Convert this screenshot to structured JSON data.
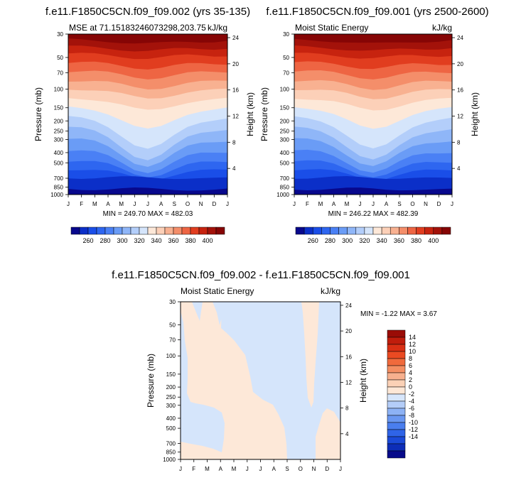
{
  "chart_data": [
    {
      "type": "contour",
      "title": "f.e11.F1850C5CN.f09_f09.002 (yrs 35-135)",
      "left_label": "MSE at 71.15183246073298,203.75",
      "right_label": "kJ/kg",
      "ylabel": "Pressure (mb)",
      "ylabel_right": "Height (km)",
      "months": [
        "J",
        "F",
        "M",
        "A",
        "M",
        "J",
        "J",
        "A",
        "S",
        "O",
        "N",
        "D",
        "J"
      ],
      "pressure_ticks": [
        "30",
        "50",
        "70",
        "100",
        "150",
        "200",
        "250",
        "300",
        "400",
        "500",
        "700",
        "850",
        "1000"
      ],
      "height_ticks": [
        "24",
        "20",
        "16",
        "12",
        "8",
        "4"
      ],
      "stats": "MIN = 249.70 MAX = 482.03"
    },
    {
      "type": "contour",
      "title": "f.e11.F1850C5CN.f09_f09.001 (yrs 2500-2600)",
      "left_label": "Moist Static Energy",
      "right_label": "kJ/kg",
      "ylabel": "Pressure (mb)",
      "ylabel_right": "Height (km)",
      "months": [
        "J",
        "F",
        "M",
        "A",
        "M",
        "J",
        "J",
        "A",
        "S",
        "O",
        "N",
        "D",
        "J"
      ],
      "pressure_ticks": [
        "30",
        "50",
        "70",
        "100",
        "150",
        "200",
        "250",
        "300",
        "400",
        "500",
        "700",
        "850",
        "1000"
      ],
      "height_ticks": [
        "24",
        "20",
        "16",
        "12",
        "8",
        "4"
      ],
      "stats": "MIN = 246.22 MAX = 482.39"
    },
    {
      "type": "contour",
      "title": "f.e11.F1850C5CN.f09_f09.002 - f.e11.F1850C5CN.f09_f09.001",
      "left_label": "Moist Static Energy",
      "right_label": "kJ/kg",
      "ylabel": "Pressure (mb)",
      "ylabel_right": "Height (km)",
      "months": [
        "J",
        "F",
        "M",
        "A",
        "M",
        "J",
        "J",
        "A",
        "S",
        "O",
        "N",
        "D",
        "J"
      ],
      "pressure_ticks": [
        "30",
        "50",
        "70",
        "100",
        "150",
        "200",
        "250",
        "300",
        "400",
        "500",
        "700",
        "850",
        "1000"
      ],
      "height_ticks": [
        "24",
        "20",
        "16",
        "12",
        "8",
        "4"
      ],
      "stats": "MIN =  -1.22 MAX =   3.67"
    }
  ],
  "colorbar_top": {
    "labels": [
      "260",
      "280",
      "300",
      "320",
      "340",
      "360",
      "380",
      "400"
    ],
    "colors": [
      "#08088c",
      "#0b2fc8",
      "#1a4ee8",
      "#2e66f0",
      "#4a80f5",
      "#6a9cf6",
      "#8fb6f8",
      "#b3cefa",
      "#d5e5fb",
      "#fde8d8",
      "#fcd0b8",
      "#f8b191",
      "#f48e6a",
      "#ee6543",
      "#e13d1f",
      "#c7230f",
      "#a3120a",
      "#860505"
    ]
  },
  "colorbar_bottom": {
    "labels": [
      "14",
      "12",
      "10",
      "8",
      "6",
      "4",
      "2",
      "0",
      "-2",
      "-4",
      "-6",
      "-8",
      "-10",
      "-12",
      "-14"
    ],
    "colors": [
      "#9a0c06",
      "#c01d0c",
      "#d92f14",
      "#ea4a22",
      "#f06a3c",
      "#f48e62",
      "#f7b08e",
      "#fbd1b6",
      "#fde7d6",
      "#d7e6fb",
      "#b4cdf8",
      "#8db2f5",
      "#6a97f1",
      "#4a7eee",
      "#2f64e7",
      "#1b4ad8",
      "#0d2db8",
      "#070b8a"
    ]
  }
}
